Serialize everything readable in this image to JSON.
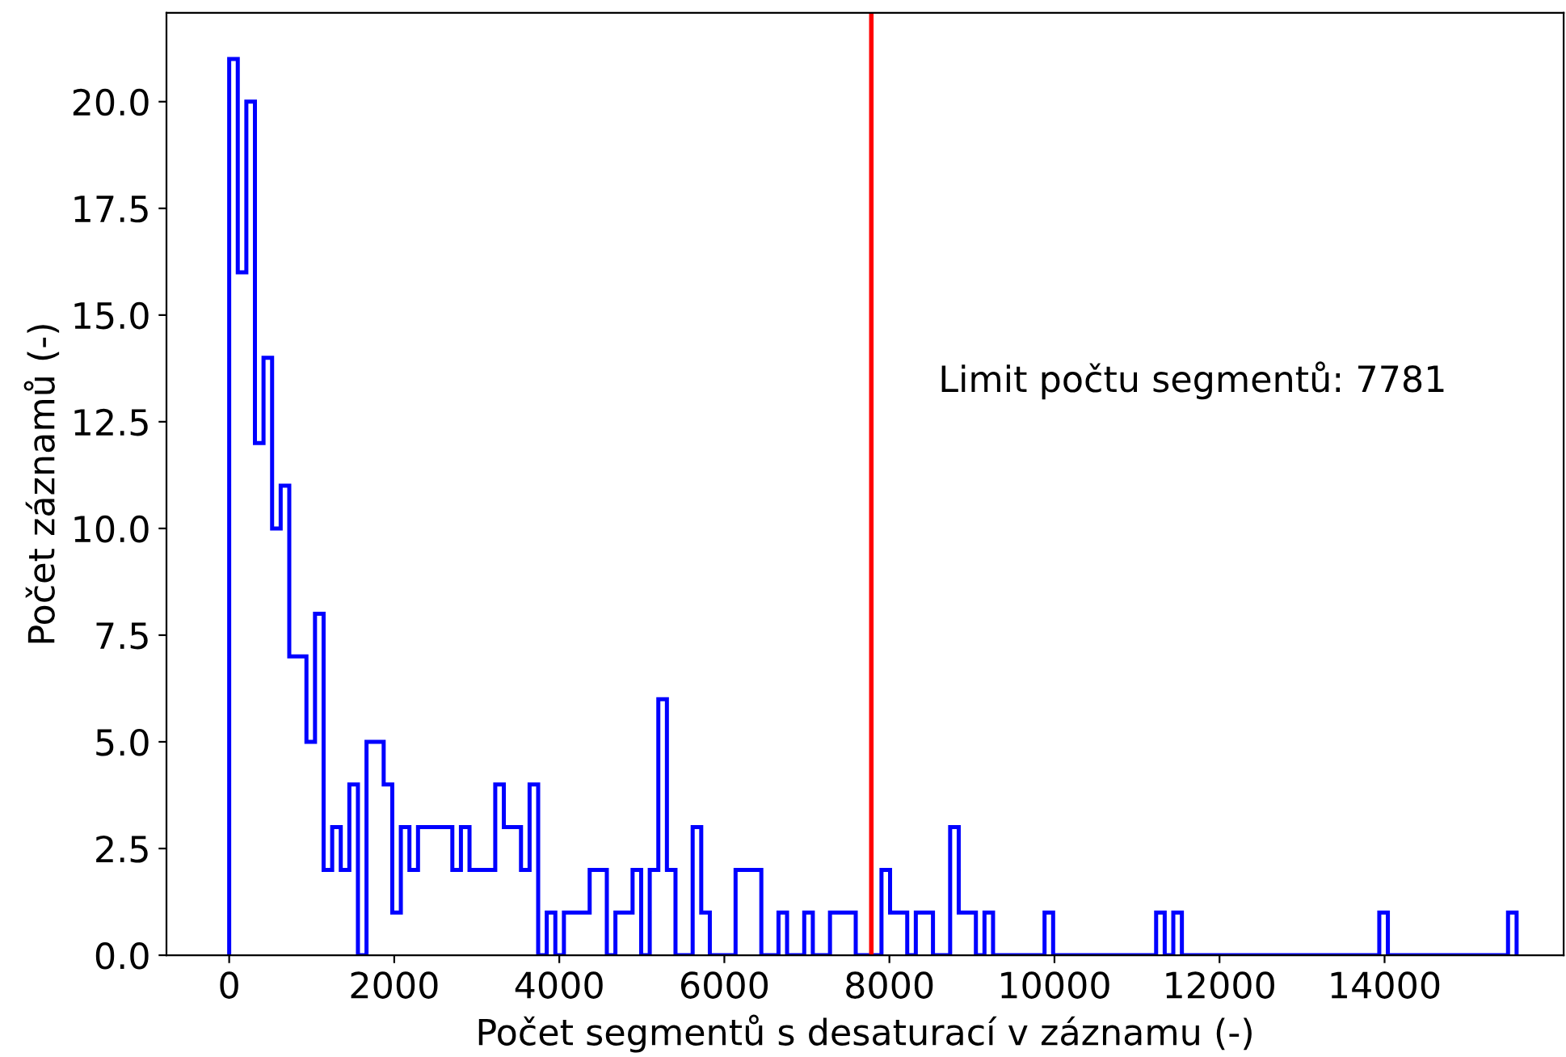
{
  "chart_data": {
    "type": "histogram",
    "xlabel": "Počet segmentů s desaturací v záznamu (-)",
    "ylabel": "Počet záznamů (-)",
    "bins": [
      0,
      104,
      208,
      312,
      416,
      520,
      624,
      728,
      832,
      936,
      1040,
      1144,
      1248,
      1352,
      1456,
      1560,
      1664,
      1768,
      1872,
      1976,
      2080,
      2184,
      2288,
      2392,
      2496,
      2600,
      2704,
      2808,
      2912,
      3016,
      3120,
      3224,
      3328,
      3432,
      3536,
      3640,
      3744,
      3848,
      3952,
      4056,
      4160,
      4264,
      4368,
      4472,
      4576,
      4680,
      4784,
      4888,
      4992,
      5096,
      5200,
      5304,
      5408,
      5512,
      5616,
      5720,
      5824,
      5928,
      6032,
      6136,
      6240,
      6344,
      6448,
      6552,
      6656,
      6760,
      6864,
      6968,
      7072,
      7176,
      7280,
      7384,
      7488,
      7592,
      7696,
      7800,
      7904,
      8008,
      8112,
      8216,
      8320,
      8424,
      8528,
      8632,
      8736,
      8840,
      8944,
      9048,
      9152,
      9256,
      9360,
      9464,
      9568,
      9672,
      9776,
      9880,
      9984,
      10088,
      10192,
      10296,
      10400,
      10504,
      10608,
      10712,
      10816,
      10920,
      11024,
      11128,
      11232,
      11336,
      11440,
      11544,
      11648,
      11752,
      11856,
      11960,
      12064,
      12168,
      12272,
      12376,
      12480,
      12584,
      12688,
      12792,
      12896,
      13000,
      13104,
      13208,
      13312,
      13416,
      13520,
      13624,
      13728,
      13832,
      13936,
      14040,
      14144,
      14248,
      14352,
      14456,
      14560,
      14664,
      14768,
      14872,
      14976,
      15080,
      15184,
      15288,
      15392,
      15496,
      15600
    ],
    "values": [
      21,
      16,
      20,
      12,
      14,
      10,
      11,
      7,
      7,
      5,
      8,
      2,
      3,
      2,
      4,
      0,
      5,
      5,
      4,
      1,
      3,
      2,
      3,
      3,
      3,
      3,
      2,
      3,
      2,
      2,
      2,
      4,
      3,
      3,
      2,
      4,
      0,
      1,
      0,
      1,
      1,
      1,
      2,
      2,
      0,
      1,
      1,
      2,
      0,
      2,
      6,
      2,
      0,
      0,
      3,
      1,
      0,
      0,
      0,
      2,
      2,
      2,
      0,
      0,
      1,
      0,
      0,
      1,
      0,
      0,
      1,
      1,
      1,
      0,
      0,
      0,
      2,
      1,
      1,
      0,
      1,
      1,
      0,
      0,
      3,
      1,
      1,
      0,
      1,
      0,
      0,
      0,
      0,
      0,
      0,
      1,
      0,
      0,
      0,
      0,
      0,
      0,
      0,
      0,
      0,
      0,
      0,
      0,
      1,
      0,
      1,
      0,
      0,
      0,
      0,
      0,
      0,
      0,
      0,
      0,
      0,
      0,
      0,
      0,
      0,
      0,
      0,
      0,
      0,
      0,
      0,
      0,
      0,
      0,
      1,
      0,
      0,
      0,
      0,
      0,
      0,
      0,
      0,
      0,
      0,
      0,
      0,
      0,
      0,
      1
    ],
    "color": "#0000ff",
    "xlim": [
      -760,
      16170
    ],
    "ylim": [
      0,
      22.08
    ],
    "xticks": [
      0,
      2000,
      4000,
      6000,
      8000,
      10000,
      12000,
      14000
    ],
    "yticks": [
      {
        "value": 0,
        "label": "0.0"
      },
      {
        "value": 2.5,
        "label": "2.5"
      },
      {
        "value": 5,
        "label": "5.0"
      },
      {
        "value": 7.5,
        "label": "7.5"
      },
      {
        "value": 10,
        "label": "10.0"
      },
      {
        "value": 12.5,
        "label": "12.5"
      },
      {
        "value": 15,
        "label": "15.0"
      },
      {
        "value": 17.5,
        "label": "17.5"
      },
      {
        "value": 20,
        "label": "20.0"
      }
    ],
    "ref_lines": [
      {
        "axis": "x",
        "value": 7781,
        "label": "Limit počtu segmentů: 7781",
        "color": "#ff0000"
      }
    ],
    "grid": false
  }
}
